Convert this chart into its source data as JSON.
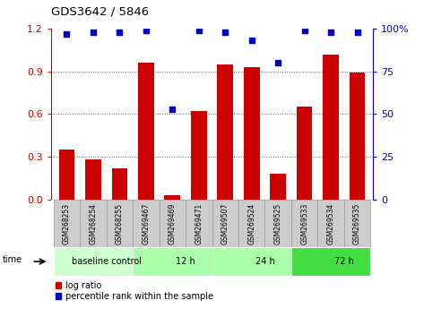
{
  "title": "GDS3642 / 5846",
  "samples": [
    "GSM268253",
    "GSM268254",
    "GSM268255",
    "GSM269467",
    "GSM269469",
    "GSM269471",
    "GSM269507",
    "GSM269524",
    "GSM269525",
    "GSM269533",
    "GSM269534",
    "GSM269535"
  ],
  "log_ratio": [
    0.35,
    0.28,
    0.22,
    0.96,
    0.03,
    0.62,
    0.95,
    0.93,
    0.18,
    0.65,
    1.02,
    0.89
  ],
  "percentile_rank": [
    97,
    98,
    98,
    99,
    53,
    99,
    98,
    93,
    80,
    99,
    98,
    98
  ],
  "ylim_left": [
    0,
    1.2
  ],
  "ylim_right": [
    0,
    100
  ],
  "yticks_left": [
    0,
    0.3,
    0.6,
    0.9,
    1.2
  ],
  "yticks_right": [
    0,
    25,
    50,
    75,
    100
  ],
  "bar_color": "#cc0000",
  "dot_color": "#0000cc",
  "groups": [
    {
      "label": "baseline control",
      "start": 0,
      "end": 3,
      "color": "#ccffcc"
    },
    {
      "label": "12 h",
      "start": 3,
      "end": 6,
      "color": "#aaffaa"
    },
    {
      "label": "24 h",
      "start": 6,
      "end": 9,
      "color": "#aaffaa"
    },
    {
      "label": "72 h",
      "start": 9,
      "end": 12,
      "color": "#44dd44"
    }
  ],
  "time_label": "time",
  "legend_bar_label": "log ratio",
  "legend_dot_label": "percentile rank within the sample",
  "background_color": "#ffffff",
  "tick_label_color_left": "#cc0000",
  "tick_label_color_right": "#0000cc",
  "grid_color": "#666666",
  "sample_box_color": "#cccccc",
  "sample_box_edge": "#999999"
}
